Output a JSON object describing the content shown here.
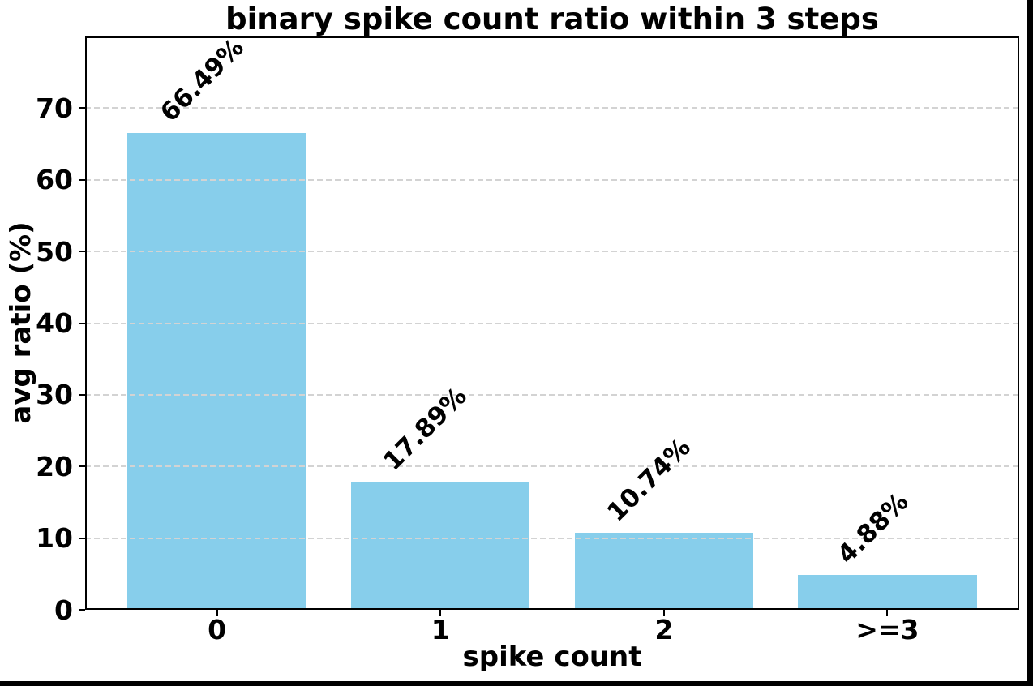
{
  "figure": {
    "background": "#ffffff",
    "border_color": "#000000"
  },
  "chart_data": {
    "type": "bar",
    "title": "binary spike count ratio within 3 steps",
    "xlabel": "spike count",
    "ylabel": "avg ratio (%)",
    "categories": [
      "0",
      "1",
      "2",
      ">=3"
    ],
    "values": [
      66.49,
      17.89,
      10.74,
      4.88
    ],
    "bar_labels": [
      "66.49%",
      "17.89%",
      "10.74%",
      "4.88%"
    ],
    "bar_label_rotation_deg": 45,
    "ylim": [
      0,
      80
    ],
    "yticks": [
      0,
      10,
      20,
      30,
      40,
      50,
      60,
      70
    ],
    "bar_color": "#87CEEB",
    "grid": {
      "on": true,
      "axis": "y",
      "style": "dashed",
      "color": "#d3d3d3"
    },
    "legend": null
  }
}
